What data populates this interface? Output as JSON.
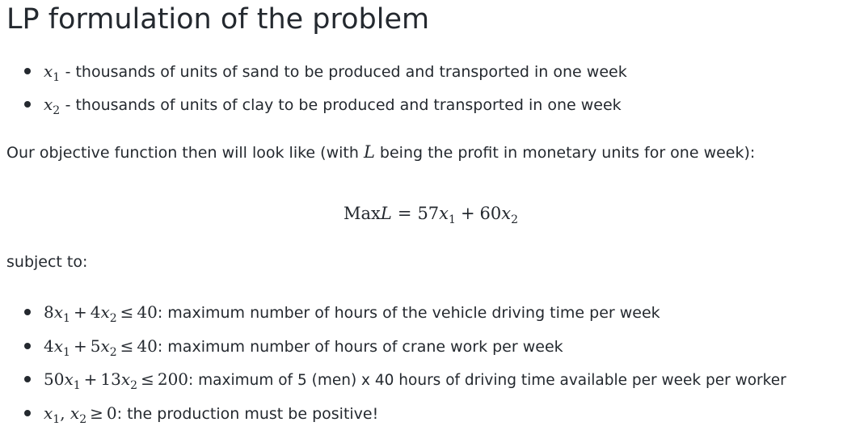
{
  "heading": "LP formulation of the problem",
  "variables": [
    {
      "symbol": "x",
      "index": "1",
      "description": " - thousands of units of sand to be produced and transported in one week"
    },
    {
      "symbol": "x",
      "index": "2",
      "description": " - thousands of units of clay to be produced and transported in one week"
    }
  ],
  "objective_intro": {
    "before": "Our objective function then will look like (with ",
    "symbol": "L",
    "after": " being the profit in monetary units for one week):"
  },
  "objective": {
    "max_word": "Max",
    "symbol": "L",
    "equals": "=",
    "coef1": "57",
    "var1": "x",
    "idx1": "1",
    "plus": "+",
    "coef2": "60",
    "var2": "x",
    "idx2": "2"
  },
  "subject_to": "subject to:",
  "constraints": [
    {
      "coef1": "8",
      "var1": "x",
      "idx1": "1",
      "op": "+",
      "coef2": "4",
      "var2": "x",
      "idx2": "2",
      "rel": "≤",
      "rhs": "40",
      "description": ": maximum number of hours of the vehicle driving time per week"
    },
    {
      "coef1": "4",
      "var1": "x",
      "idx1": "1",
      "op": "+",
      "coef2": "5",
      "var2": "x",
      "idx2": "2",
      "rel": "≤",
      "rhs": "40",
      "description": ": maximum number of hours of crane work per week"
    },
    {
      "coef1": "50",
      "var1": "x",
      "idx1": "1",
      "op": "+",
      "coef2": "13",
      "var2": "x",
      "idx2": "2",
      "rel": "≤",
      "rhs": "200",
      "description": ": maximum of 5 (men) x 40 hours of driving time available per week per worker"
    }
  ],
  "nonnegativity": {
    "var1": "x",
    "idx1": "1",
    "comma": ", ",
    "var2": "x",
    "idx2": "2",
    "rel": "≥",
    "rhs": "0",
    "description": ": the production must be positive!"
  }
}
